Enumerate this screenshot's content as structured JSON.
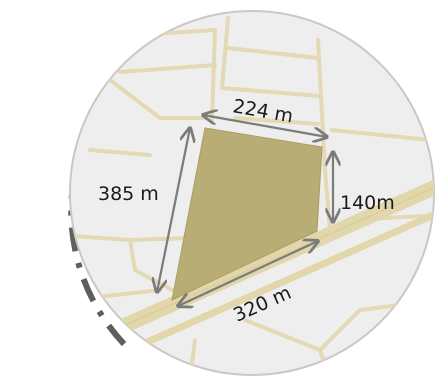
{
  "map": {
    "labels": {
      "top": "224 m",
      "left": "385 m",
      "right": "140m",
      "bottom": "320 m"
    },
    "colors": {
      "background_circle": "#efeeee",
      "circle_border": "#c9c8c6",
      "roads": "#e3d9b4",
      "main_road": "#e2d6ab",
      "plot_fill": "#b8ad74",
      "arrows": "#7b7b7b",
      "dashed_arc": "#5f5f5f"
    }
  }
}
